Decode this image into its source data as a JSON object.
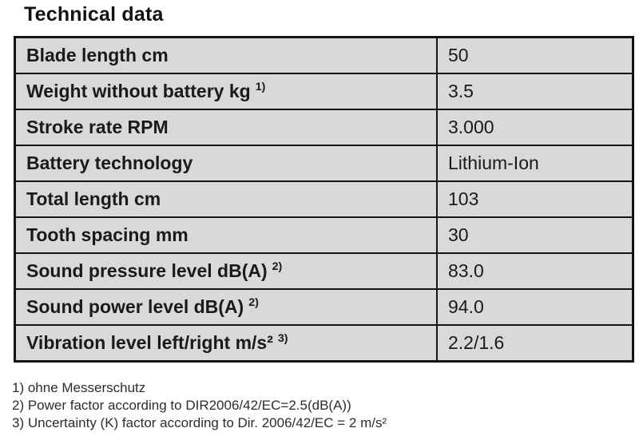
{
  "title": "Technical data",
  "table": {
    "rows": [
      {
        "label": "Blade length cm",
        "sup": "",
        "value": "50"
      },
      {
        "label": "Weight without battery kg",
        "sup": "1)",
        "value": "3.5"
      },
      {
        "label": "Stroke rate RPM",
        "sup": "",
        "value": "3.000"
      },
      {
        "label": "Battery technology",
        "sup": "",
        "value": "Lithium-Ion"
      },
      {
        "label": "Total length cm",
        "sup": "",
        "value": "103"
      },
      {
        "label": "Tooth spacing mm",
        "sup": "",
        "value": "30"
      },
      {
        "label": "Sound pressure level dB(A)",
        "sup": "2)",
        "value": "83.0"
      },
      {
        "label": "Sound power level dB(A)",
        "sup": "2)",
        "value": "94.0"
      },
      {
        "label": "Vibration level left/right m/s²",
        "sup": "3)",
        "value": "2.2/1.6"
      }
    ]
  },
  "footnotes": [
    "1) ohne Messerschutz",
    "2) Power factor according to DIR2006/42/EC=2.5(dB(A))",
    "3) Uncertainty (K) factor according to Dir. 2006/42/EC = 2 m/s²"
  ],
  "colors": {
    "page_background": "#ffffff",
    "cell_background": "#d9d9d9",
    "border": "#141414",
    "text": "#1a1a1a"
  }
}
